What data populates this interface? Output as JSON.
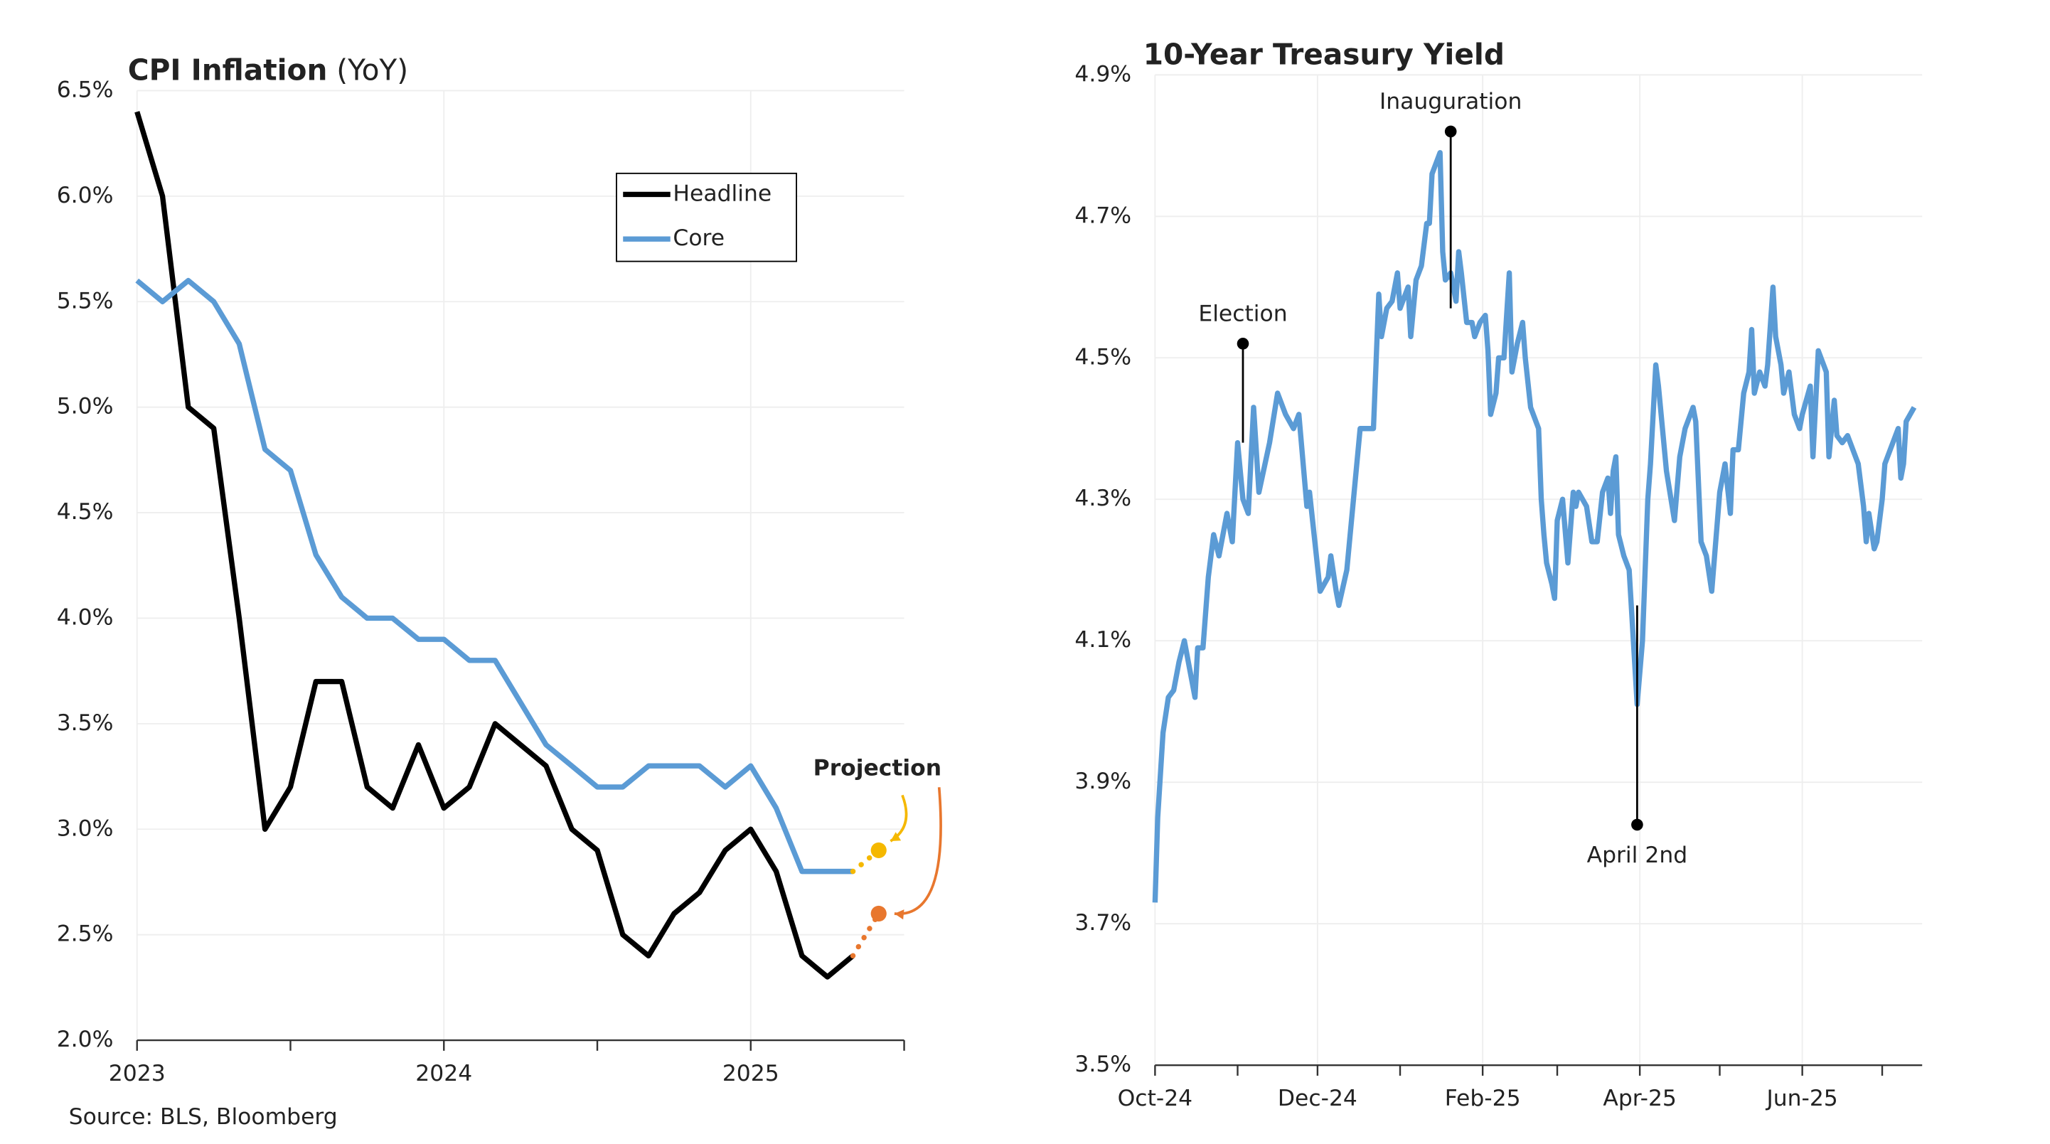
{
  "chart_data": [
    {
      "type": "line",
      "title": "CPI Inflation",
      "subtitle": "(YoY)",
      "source": "Source: BLS, Bloomberg",
      "x": [
        2023,
        2023.083,
        2023.167,
        2023.25,
        2023.333,
        2023.417,
        2023.5,
        2023.583,
        2023.667,
        2023.75,
        2023.833,
        2023.917,
        2024,
        2024.083,
        2024.167,
        2024.25,
        2024.333,
        2024.417,
        2024.5,
        2024.583,
        2024.667,
        2024.75,
        2024.833,
        2024.917,
        2025,
        2025.083,
        2025.167,
        2025.25,
        2025.333
      ],
      "series": [
        {
          "name": "Headline",
          "color": "#000000",
          "values": [
            6.4,
            6.0,
            5.0,
            4.9,
            4.0,
            3.0,
            3.2,
            3.7,
            3.7,
            3.2,
            3.1,
            3.4,
            3.1,
            3.2,
            3.5,
            3.4,
            3.3,
            3.0,
            2.9,
            2.5,
            2.4,
            2.6,
            2.7,
            2.9,
            3.0,
            2.8,
            2.4,
            2.3,
            2.4
          ],
          "projection": 2.6,
          "projection_color": "#e8772e"
        },
        {
          "name": "Core",
          "color": "#5b9bd5",
          "values": [
            5.6,
            5.5,
            5.6,
            5.5,
            5.3,
            4.8,
            4.7,
            4.3,
            4.1,
            4.0,
            4.0,
            3.9,
            3.9,
            3.8,
            3.8,
            3.6,
            3.4,
            3.3,
            3.2,
            3.2,
            3.3,
            3.3,
            3.3,
            3.2,
            3.3,
            3.1,
            2.8,
            2.8,
            2.8
          ],
          "projection": 2.9,
          "projection_color": "#f5b800"
        }
      ],
      "projection_x": 2025.417,
      "projection_label": "Projection",
      "projection_label_color": "#f5a31a",
      "xlim": [
        2023,
        2025.5
      ],
      "xticks": [
        2023,
        2024,
        2025
      ],
      "xminor": [
        2023.5,
        2024.5,
        2025.5
      ],
      "ylim": [
        2.0,
        6.5
      ],
      "yticks": [
        {
          "value": 2.0,
          "label": "2.0%"
        },
        {
          "value": 2.5,
          "label": "2.5%"
        },
        {
          "value": 3.0,
          "label": "3.0%"
        },
        {
          "value": 3.5,
          "label": "3.5%"
        },
        {
          "value": 4.0,
          "label": "4.0%"
        },
        {
          "value": 4.5,
          "label": "4.5%"
        },
        {
          "value": 5.0,
          "label": "5.0%"
        },
        {
          "value": 5.5,
          "label": "5.5%"
        },
        {
          "value": 6.0,
          "label": "6.0%"
        },
        {
          "value": 6.5,
          "label": "6.5%"
        }
      ],
      "grid": true,
      "legend": "upper right"
    },
    {
      "type": "line",
      "title": "10-Year Treasury Yield",
      "x": [
        0,
        1,
        3,
        5,
        7,
        9,
        11,
        13,
        15,
        16,
        18,
        20,
        22,
        24,
        27,
        29,
        31,
        33,
        35,
        37,
        39,
        43,
        46,
        49,
        52,
        54,
        57,
        58,
        62,
        65,
        66,
        68,
        69,
        72,
        74,
        77,
        80,
        82,
        84,
        85,
        87,
        89,
        91,
        92,
        95,
        96,
        98,
        100,
        102,
        103,
        104,
        106,
        107,
        108,
        109,
        111,
        113,
        114,
        115,
        117,
        119,
        120,
        122,
        124,
        125,
        126,
        128,
        129,
        131,
        133,
        134,
        136,
        138,
        139,
        141,
        144,
        145,
        146,
        147,
        149,
        150,
        151,
        153,
        155,
        157,
        158,
        159,
        162,
        164,
        166,
        168,
        170,
        171,
        172,
        173,
        174,
        176,
        178,
        181,
        183,
        185,
        186,
        188,
        189,
        191,
        192,
        195,
        197,
        199,
        202,
        203,
        205,
        207,
        209,
        212,
        214,
        216,
        217,
        219,
        221,
        223,
        224,
        225,
        227,
        229,
        230,
        232,
        233,
        235,
        236,
        238,
        240,
        242,
        243,
        246,
        247,
        249,
        251,
        252,
        253,
        255,
        256,
        258,
        260,
        264,
        266,
        267,
        268,
        270,
        271,
        273,
        274,
        277,
        279,
        280,
        281,
        282,
        285
      ],
      "series": [
        {
          "color": "#5b9bd5",
          "values": [
            3.73,
            3.85,
            3.97,
            4.02,
            4.03,
            4.07,
            4.1,
            4.06,
            4.02,
            4.09,
            4.09,
            4.19,
            4.25,
            4.22,
            4.28,
            4.24,
            4.38,
            4.3,
            4.28,
            4.43,
            4.31,
            4.38,
            4.45,
            4.42,
            4.4,
            4.42,
            4.29,
            4.31,
            4.17,
            4.19,
            4.22,
            4.17,
            4.15,
            4.2,
            4.28,
            4.4,
            4.4,
            4.4,
            4.59,
            4.53,
            4.57,
            4.58,
            4.62,
            4.57,
            4.6,
            4.53,
            4.61,
            4.63,
            4.69,
            4.69,
            4.76,
            4.78,
            4.79,
            4.65,
            4.61,
            4.62,
            4.58,
            4.65,
            4.62,
            4.55,
            4.55,
            4.53,
            4.55,
            4.56,
            4.51,
            4.42,
            4.45,
            4.5,
            4.5,
            4.62,
            4.48,
            4.52,
            4.55,
            4.5,
            4.43,
            4.4,
            4.3,
            4.25,
            4.21,
            4.18,
            4.16,
            4.27,
            4.3,
            4.21,
            4.31,
            4.29,
            4.31,
            4.29,
            4.24,
            4.24,
            4.31,
            4.33,
            4.28,
            4.34,
            4.36,
            4.25,
            4.22,
            4.2,
            4.01,
            4.1,
            4.3,
            4.35,
            4.49,
            4.46,
            4.38,
            4.34,
            4.27,
            4.36,
            4.4,
            4.43,
            4.41,
            4.24,
            4.22,
            4.17,
            4.31,
            4.35,
            4.28,
            4.37,
            4.37,
            4.45,
            4.48,
            4.54,
            4.45,
            4.48,
            4.46,
            4.49,
            4.6,
            4.53,
            4.49,
            4.45,
            4.48,
            4.42,
            4.4,
            4.42,
            4.46,
            4.36,
            4.51,
            4.49,
            4.48,
            4.36,
            4.44,
            4.39,
            4.38,
            4.39,
            4.35,
            4.29,
            4.24,
            4.28,
            4.23,
            4.24,
            4.3,
            4.35,
            4.38,
            4.4,
            4.33,
            4.35,
            4.41,
            4.43
          ]
        }
      ],
      "xlim": [
        0,
        288
      ],
      "xticks": [
        {
          "value": 0,
          "label": "Oct-24"
        },
        {
          "value": 61,
          "label": "Dec-24"
        },
        {
          "value": 123,
          "label": "Feb-25"
        },
        {
          "value": 182,
          "label": "Apr-25"
        },
        {
          "value": 243,
          "label": "Jun-25"
        }
      ],
      "xminor": [
        31,
        92,
        151,
        212,
        273
      ],
      "ylim": [
        3.5,
        4.9
      ],
      "yticks": [
        {
          "value": 3.5,
          "label": "3.5%"
        },
        {
          "value": 3.7,
          "label": "3.7%"
        },
        {
          "value": 3.9,
          "label": "3.9%"
        },
        {
          "value": 4.1,
          "label": "4.1%"
        },
        {
          "value": 4.3,
          "label": "4.3%"
        },
        {
          "value": 4.5,
          "label": "4.5%"
        },
        {
          "value": 4.7,
          "label": "4.7%"
        },
        {
          "value": 4.9,
          "label": "4.9%"
        }
      ],
      "grid": true,
      "annotations": [
        {
          "label": "Election",
          "x": 33,
          "y": 4.52,
          "to": 4.38,
          "position": "above"
        },
        {
          "label": "Inauguration",
          "x": 111,
          "y": 4.82,
          "to": 4.57,
          "position": "above"
        },
        {
          "label": "April 2nd",
          "x": 181,
          "y": 3.84,
          "to": 4.15,
          "position": "below"
        }
      ]
    }
  ]
}
